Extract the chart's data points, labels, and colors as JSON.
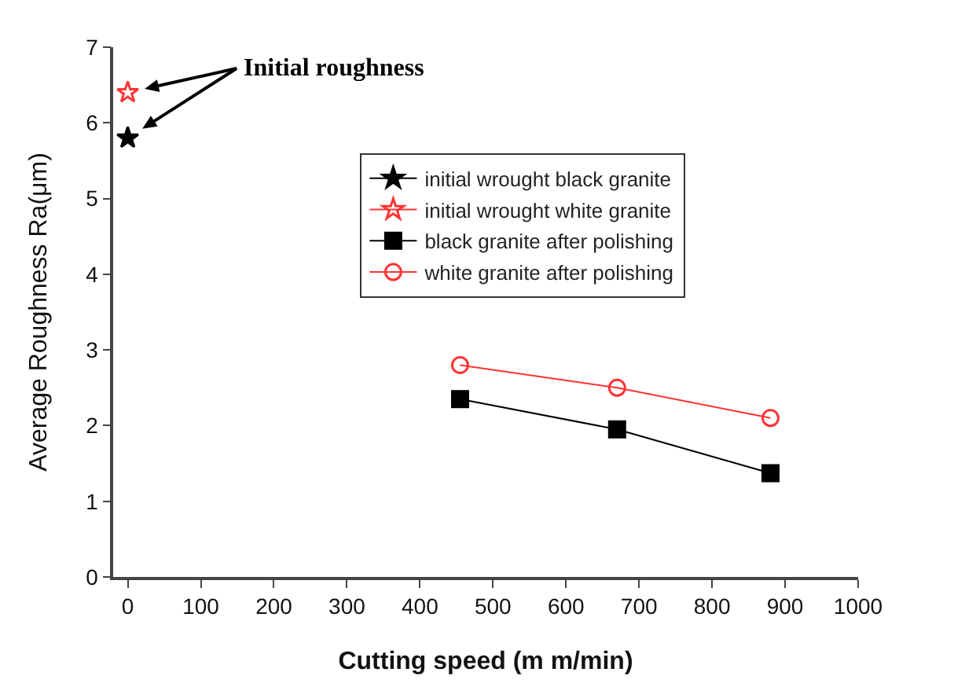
{
  "chart_data": {
    "type": "line",
    "xlabel": "Cutting speed (m m/min)",
    "ylabel": "Average Roughness Ra(μm)",
    "xlim": [
      -20,
      1000
    ],
    "xticks": [
      0,
      100,
      200,
      300,
      400,
      500,
      600,
      700,
      800,
      900,
      1000
    ],
    "ylim": [
      0,
      7
    ],
    "yticks": [
      0,
      1,
      2,
      3,
      4,
      5,
      6,
      7
    ],
    "grid": false,
    "legend": "top",
    "line_style": "solid",
    "annotations": [
      "Initial roughness"
    ],
    "series": [
      {
        "name": "initial wrought black granite",
        "color": "#000000",
        "marker": "star",
        "x": [
          0
        ],
        "values": [
          5.8
        ]
      },
      {
        "name": "initial wrought white granite",
        "color": "#ff3333",
        "marker": "star-open",
        "x": [
          0
        ],
        "values": [
          6.4
        ]
      },
      {
        "name": "black granite after polishing",
        "color": "#000000",
        "marker": "square",
        "x": [
          455,
          670,
          880
        ],
        "values": [
          2.35,
          1.95,
          1.37
        ]
      },
      {
        "name": "white granite after polishing",
        "color": "#ff3333",
        "marker": "circle-open",
        "x": [
          455,
          670,
          880
        ],
        "values": [
          2.8,
          2.5,
          2.1
        ]
      }
    ]
  }
}
